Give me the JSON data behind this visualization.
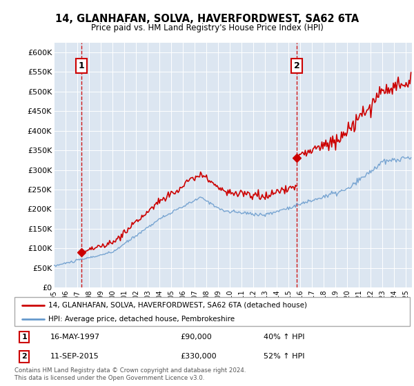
{
  "title": "14, GLANHAFAN, SOLVA, HAVERFORDWEST, SA62 6TA",
  "subtitle": "Price paid vs. HM Land Registry's House Price Index (HPI)",
  "legend_line1": "14, GLANHAFAN, SOLVA, HAVERFORDWEST, SA62 6TA (detached house)",
  "legend_line2": "HPI: Average price, detached house, Pembrokeshire",
  "annotation1_date": "16-MAY-1997",
  "annotation1_price": 90000,
  "annotation1_pct": "40% ↑ HPI",
  "annotation2_date": "11-SEP-2015",
  "annotation2_price": 330000,
  "annotation2_pct": "52% ↑ HPI",
  "footer": "Contains HM Land Registry data © Crown copyright and database right 2024.\nThis data is licensed under the Open Government Licence v3.0.",
  "sale_color": "#cc0000",
  "hpi_color": "#6699cc",
  "annotation_box_color": "#cc0000",
  "bg_color": "#dce6f1",
  "ylim_bottom": 0,
  "ylim_top": 625000,
  "yticks": [
    0,
    50000,
    100000,
    150000,
    200000,
    250000,
    300000,
    350000,
    400000,
    450000,
    500000,
    550000,
    600000
  ],
  "sale1_x": 1997.37,
  "sale1_y": 90000,
  "sale2_x": 2015.69,
  "sale2_y": 330000,
  "xlim_left": 1995,
  "xlim_right": 2025.5
}
